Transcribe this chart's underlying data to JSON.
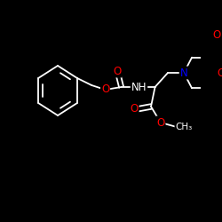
{
  "background_color": "#000000",
  "bond_color": "#ffffff",
  "atom_colors": {
    "O": "#ff0000",
    "N": "#0000ff",
    "H": "#ffffff",
    "C": "#ffffff"
  },
  "figsize": [
    2.5,
    2.5
  ],
  "dpi": 100,
  "xlim": [
    0,
    250
  ],
  "ylim": [
    0,
    250
  ]
}
